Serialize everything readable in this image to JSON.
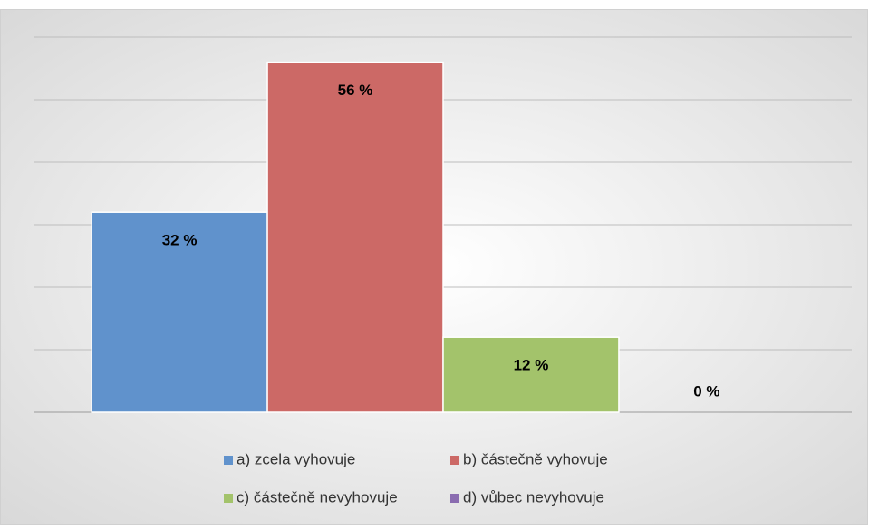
{
  "chart_data": {
    "type": "bar",
    "categories": [
      null
    ],
    "series": [
      {
        "name": "a) zcela vyhovuje",
        "color": "#6092cc",
        "values": [
          32
        ],
        "value_labels": [
          "32 %"
        ]
      },
      {
        "name": "b) částečně vyhovuje",
        "color": "#cc6966",
        "values": [
          56
        ],
        "value_labels": [
          "56 %"
        ]
      },
      {
        "name": "c) částečně nevyhovuje",
        "color": "#a3c36b",
        "values": [
          12
        ],
        "value_labels": [
          "12 %"
        ]
      },
      {
        "name": "d) vůbec nevyhovuje",
        "color": "#8a6cb0",
        "values": [
          0
        ],
        "value_labels": [
          "0 %"
        ]
      }
    ],
    "ylim": [
      0,
      60
    ],
    "yticks": [
      0,
      10,
      20,
      30,
      40,
      50,
      60
    ],
    "grid": true
  }
}
